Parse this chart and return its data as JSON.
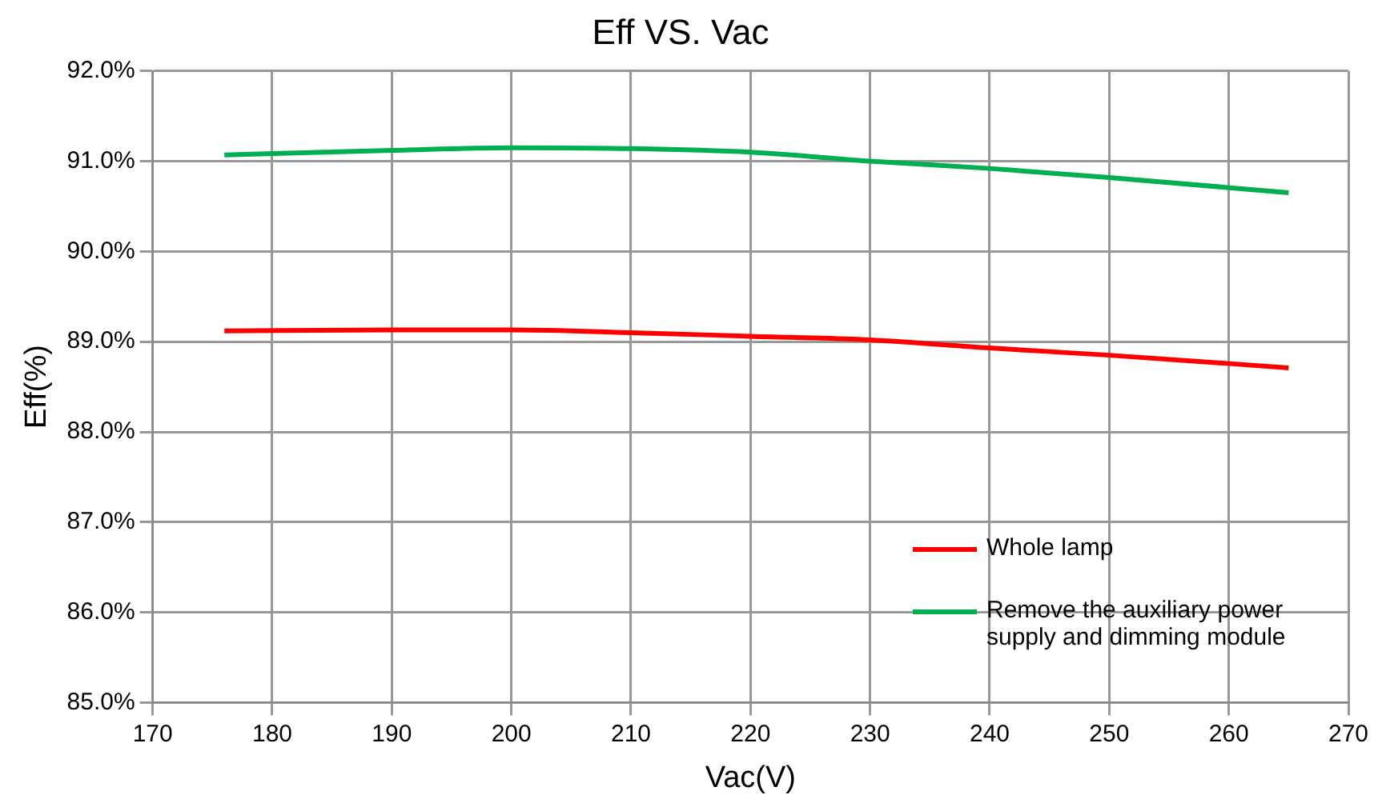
{
  "chart_data": {
    "type": "line",
    "title": "Eff VS. Vac",
    "xlabel": "Vac(V)",
    "ylabel": "Eff(%)",
    "xlim": [
      170,
      270
    ],
    "xticks": [
      170,
      180,
      190,
      200,
      210,
      220,
      230,
      240,
      250,
      260,
      270
    ],
    "ylim": [
      85,
      92
    ],
    "yticks": [
      {
        "value": 85,
        "label": "85.0%"
      },
      {
        "value": 86,
        "label": "86.0%"
      },
      {
        "value": 87,
        "label": "87.0%"
      },
      {
        "value": 88,
        "label": "88.0%"
      },
      {
        "value": 89,
        "label": "89.0%"
      },
      {
        "value": 90,
        "label": "90.0%"
      },
      {
        "value": 91,
        "label": "91.0%"
      },
      {
        "value": 92,
        "label": "92.0%"
      }
    ],
    "x": [
      176,
      190,
      200,
      210,
      220,
      230,
      240,
      250,
      265
    ],
    "series": [
      {
        "name": "Whole lamp",
        "color": "#ff0000",
        "values": [
          89.12,
          89.13,
          89.13,
          89.1,
          89.06,
          89.02,
          88.93,
          88.85,
          88.71
        ]
      },
      {
        "name": "Remove the auxiliary power supply and dimming module",
        "color": "#00b050",
        "values": [
          91.07,
          91.12,
          91.15,
          91.14,
          91.1,
          91.0,
          90.92,
          90.82,
          90.65
        ]
      }
    ],
    "grid": true,
    "legend": "bottom right",
    "marker": "none",
    "line_style": "solid"
  }
}
